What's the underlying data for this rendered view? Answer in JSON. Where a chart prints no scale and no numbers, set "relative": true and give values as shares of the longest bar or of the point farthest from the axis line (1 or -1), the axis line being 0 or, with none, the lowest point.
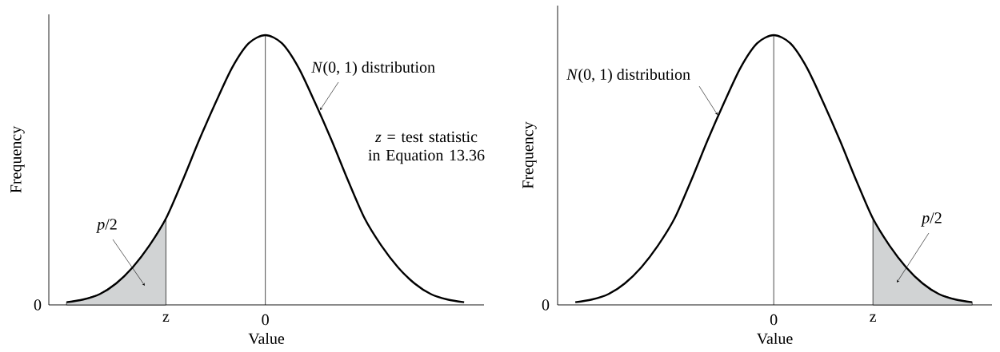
{
  "chart_data": [
    {
      "type": "line",
      "relative": true,
      "xlabel": "Value",
      "ylabel": "Frequency",
      "categories": [
        null,
        null,
        null,
        null,
        null,
        null,
        "z",
        null,
        null,
        null,
        null,
        null,
        "0",
        null,
        null,
        null,
        null,
        null,
        null,
        null,
        null,
        null,
        null,
        null,
        null
      ],
      "ref_lines": [
        {
          "axis": "x",
          "value": "0"
        }
      ],
      "series": [
        {
          "color": "#000000",
          "values": [
            0.01,
            0.02,
            0.04,
            0.08,
            0.14,
            0.22,
            0.32,
            0.46,
            0.61,
            0.75,
            0.88,
            0.97,
            1,
            0.97,
            0.88,
            0.75,
            0.61,
            0.46,
            0.32,
            0.22,
            0.14,
            0.08,
            0.04,
            0.02,
            0.01
          ]
        },
        {
          "type": "area",
          "color": "#d1d3d4",
          "values": [
            0.01,
            0.02,
            0.04,
            0.08,
            0.14,
            0.22,
            0.32,
            null,
            null,
            null,
            null,
            null,
            null,
            null,
            null,
            null,
            null,
            null,
            null,
            null,
            null,
            null,
            null,
            null,
            null
          ]
        }
      ],
      "annotations": [
        "*N*(0, 1) distribution",
        "*z* = test statistic in Equation 13.36",
        "*p*/2",
        "0"
      ]
    },
    {
      "type": "line",
      "relative": true,
      "xlabel": "Value",
      "ylabel": "Frequency",
      "categories": [
        null,
        null,
        null,
        null,
        null,
        null,
        null,
        null,
        null,
        null,
        null,
        null,
        "0",
        null,
        null,
        null,
        null,
        null,
        "z",
        null,
        null,
        null,
        null,
        null,
        null
      ],
      "ref_lines": [
        {
          "axis": "x",
          "value": "0"
        }
      ],
      "series": [
        {
          "color": "#000000",
          "values": [
            0.01,
            0.02,
            0.04,
            0.08,
            0.14,
            0.22,
            0.32,
            0.46,
            0.61,
            0.75,
            0.88,
            0.97,
            1,
            0.97,
            0.88,
            0.75,
            0.61,
            0.46,
            0.32,
            0.22,
            0.14,
            0.08,
            0.04,
            0.02,
            0.01
          ]
        },
        {
          "type": "area",
          "color": "#d1d3d4",
          "values": [
            null,
            null,
            null,
            null,
            null,
            null,
            null,
            null,
            null,
            null,
            null,
            null,
            null,
            null,
            null,
            null,
            null,
            null,
            0.32,
            0.22,
            0.14,
            0.08,
            0.04,
            0.02,
            0.01
          ]
        }
      ],
      "annotations": [
        "*N*(0, 1) distribution",
        "*p*/2",
        "0"
      ]
    }
  ]
}
